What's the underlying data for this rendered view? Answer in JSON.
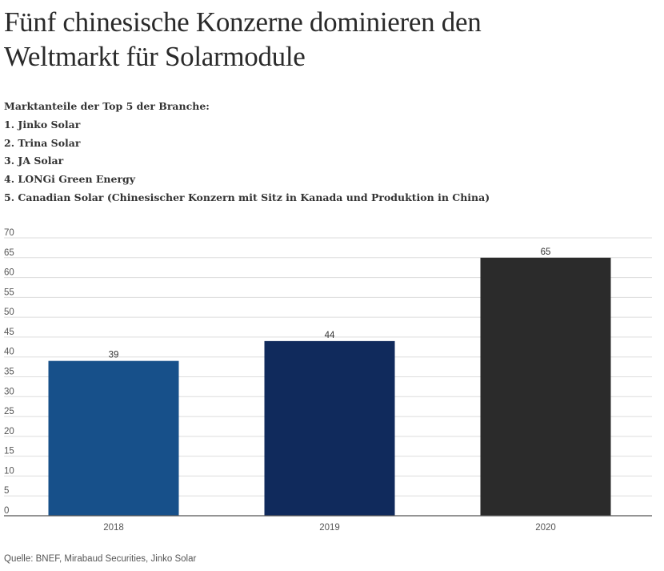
{
  "title_line1": "Fünf chinesische Konzerne dominieren den",
  "title_line2": "Weltmarkt für Solarmodule",
  "subtitle": {
    "heading": "Marktanteile der Top 5 der Branche:",
    "items": [
      "1. Jinko Solar",
      "2. Trina Solar",
      "3. JA Solar",
      "4. LONGi Green Energy",
      "5. Canadian Solar (Chinesischer Konzern mit Sitz in Kanada und Produktion in China)"
    ]
  },
  "source": "Quelle: BNEF, Mirabaud Securities, Jinko Solar",
  "colors": {
    "bar_2018": "#17508a",
    "bar_2019": "#102a5c",
    "bar_2020": "#2b2b2b",
    "grid": "#dddddd",
    "axis": "#555555"
  },
  "chart_data": {
    "type": "bar",
    "categories": [
      "2018",
      "2019",
      "2020"
    ],
    "values": [
      39,
      44,
      65
    ],
    "data_labels": [
      "39",
      "44",
      "65"
    ],
    "yticks": [
      "0",
      "5",
      "10",
      "15",
      "20",
      "25",
      "30",
      "35",
      "40",
      "45",
      "50",
      "55",
      "60",
      "65",
      "70"
    ],
    "ylim": [
      0,
      70
    ],
    "grid": true,
    "legend": "none"
  }
}
